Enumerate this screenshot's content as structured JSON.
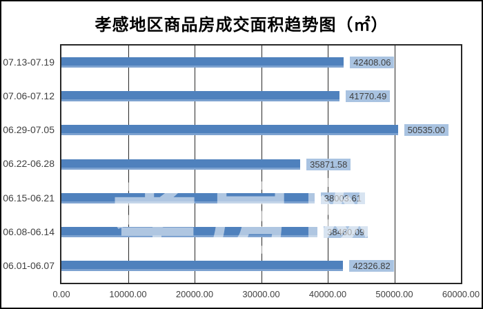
{
  "window": {
    "background_color": "#ffffff",
    "border_color": "#000000"
  },
  "chart_data": {
    "type": "bar",
    "orientation": "horizontal",
    "title": "孝感地区商品房成交面积趋势图（㎡）",
    "categories": [
      "07.13-07.19",
      "07.06-07.12",
      "06.29-07.05",
      "06.22-06.28",
      "06.15-06.21",
      "06.08-06.14",
      "06.01-06.07"
    ],
    "values": [
      42408.06,
      41770.49,
      50535.0,
      35871.58,
      38003.61,
      38460.09,
      42326.82
    ],
    "value_labels": [
      "42408.06",
      "41770.49",
      "50535.00",
      "35871.58",
      "38003.61",
      "38460.09",
      "42326.82"
    ],
    "xlabel": "",
    "ylabel": "",
    "xlim": [
      0,
      60000
    ],
    "x_ticks": [
      "0.00",
      "10000.00",
      "20000.00",
      "30000.00",
      "40000.00",
      "50000.00",
      "60000.00"
    ],
    "x_tick_values": [
      0,
      10000,
      20000,
      30000,
      40000,
      50000,
      60000
    ],
    "grid": "vertical-only",
    "legend": "none",
    "bar_color": "#4f81bd",
    "bar_edge_color": "#7da2d0",
    "value_label_bg": "#a9c3e1",
    "value_label_text_color": "#3f3f3f",
    "axis_text_color": "#3f3f3f",
    "gridline_color": "#262626"
  },
  "watermark": {
    "text": "孝房网",
    "color": "#ffffff"
  }
}
